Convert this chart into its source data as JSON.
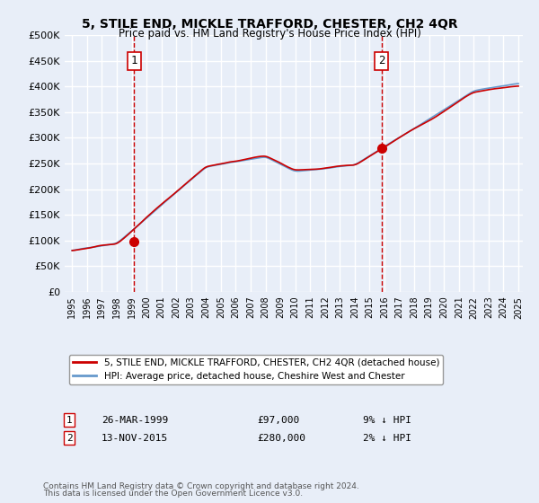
{
  "title": "5, STILE END, MICKLE TRAFFORD, CHESTER, CH2 4QR",
  "subtitle": "Price paid vs. HM Land Registry's House Price Index (HPI)",
  "bg_color": "#e8eef8",
  "plot_bg_color": "#e8eef8",
  "grid_color": "#ffffff",
  "hpi_color": "#6699cc",
  "price_color": "#cc0000",
  "vline_color": "#cc0000",
  "sale1_date_idx": 16,
  "sale1_price": 97000,
  "sale1_label": "1",
  "sale2_date_idx": 124,
  "sale2_price": 280000,
  "sale2_label": "2",
  "ylim": [
    0,
    500000
  ],
  "yticks": [
    0,
    50000,
    100000,
    150000,
    200000,
    250000,
    300000,
    350000,
    400000,
    450000,
    500000
  ],
  "legend_line1": "5, STILE END, MICKLE TRAFFORD, CHESTER, CH2 4QR (detached house)",
  "legend_line2": "HPI: Average price, detached house, Cheshire West and Chester",
  "footer1": "Contains HM Land Registry data © Crown copyright and database right 2024.",
  "footer2": "This data is licensed under the Open Government Licence v3.0.",
  "table_row1": [
    "1",
    "26-MAR-1999",
    "£97,000",
    "9% ↓ HPI"
  ],
  "table_row2": [
    "2",
    "13-NOV-2015",
    "£280,000",
    "2% ↓ HPI"
  ]
}
